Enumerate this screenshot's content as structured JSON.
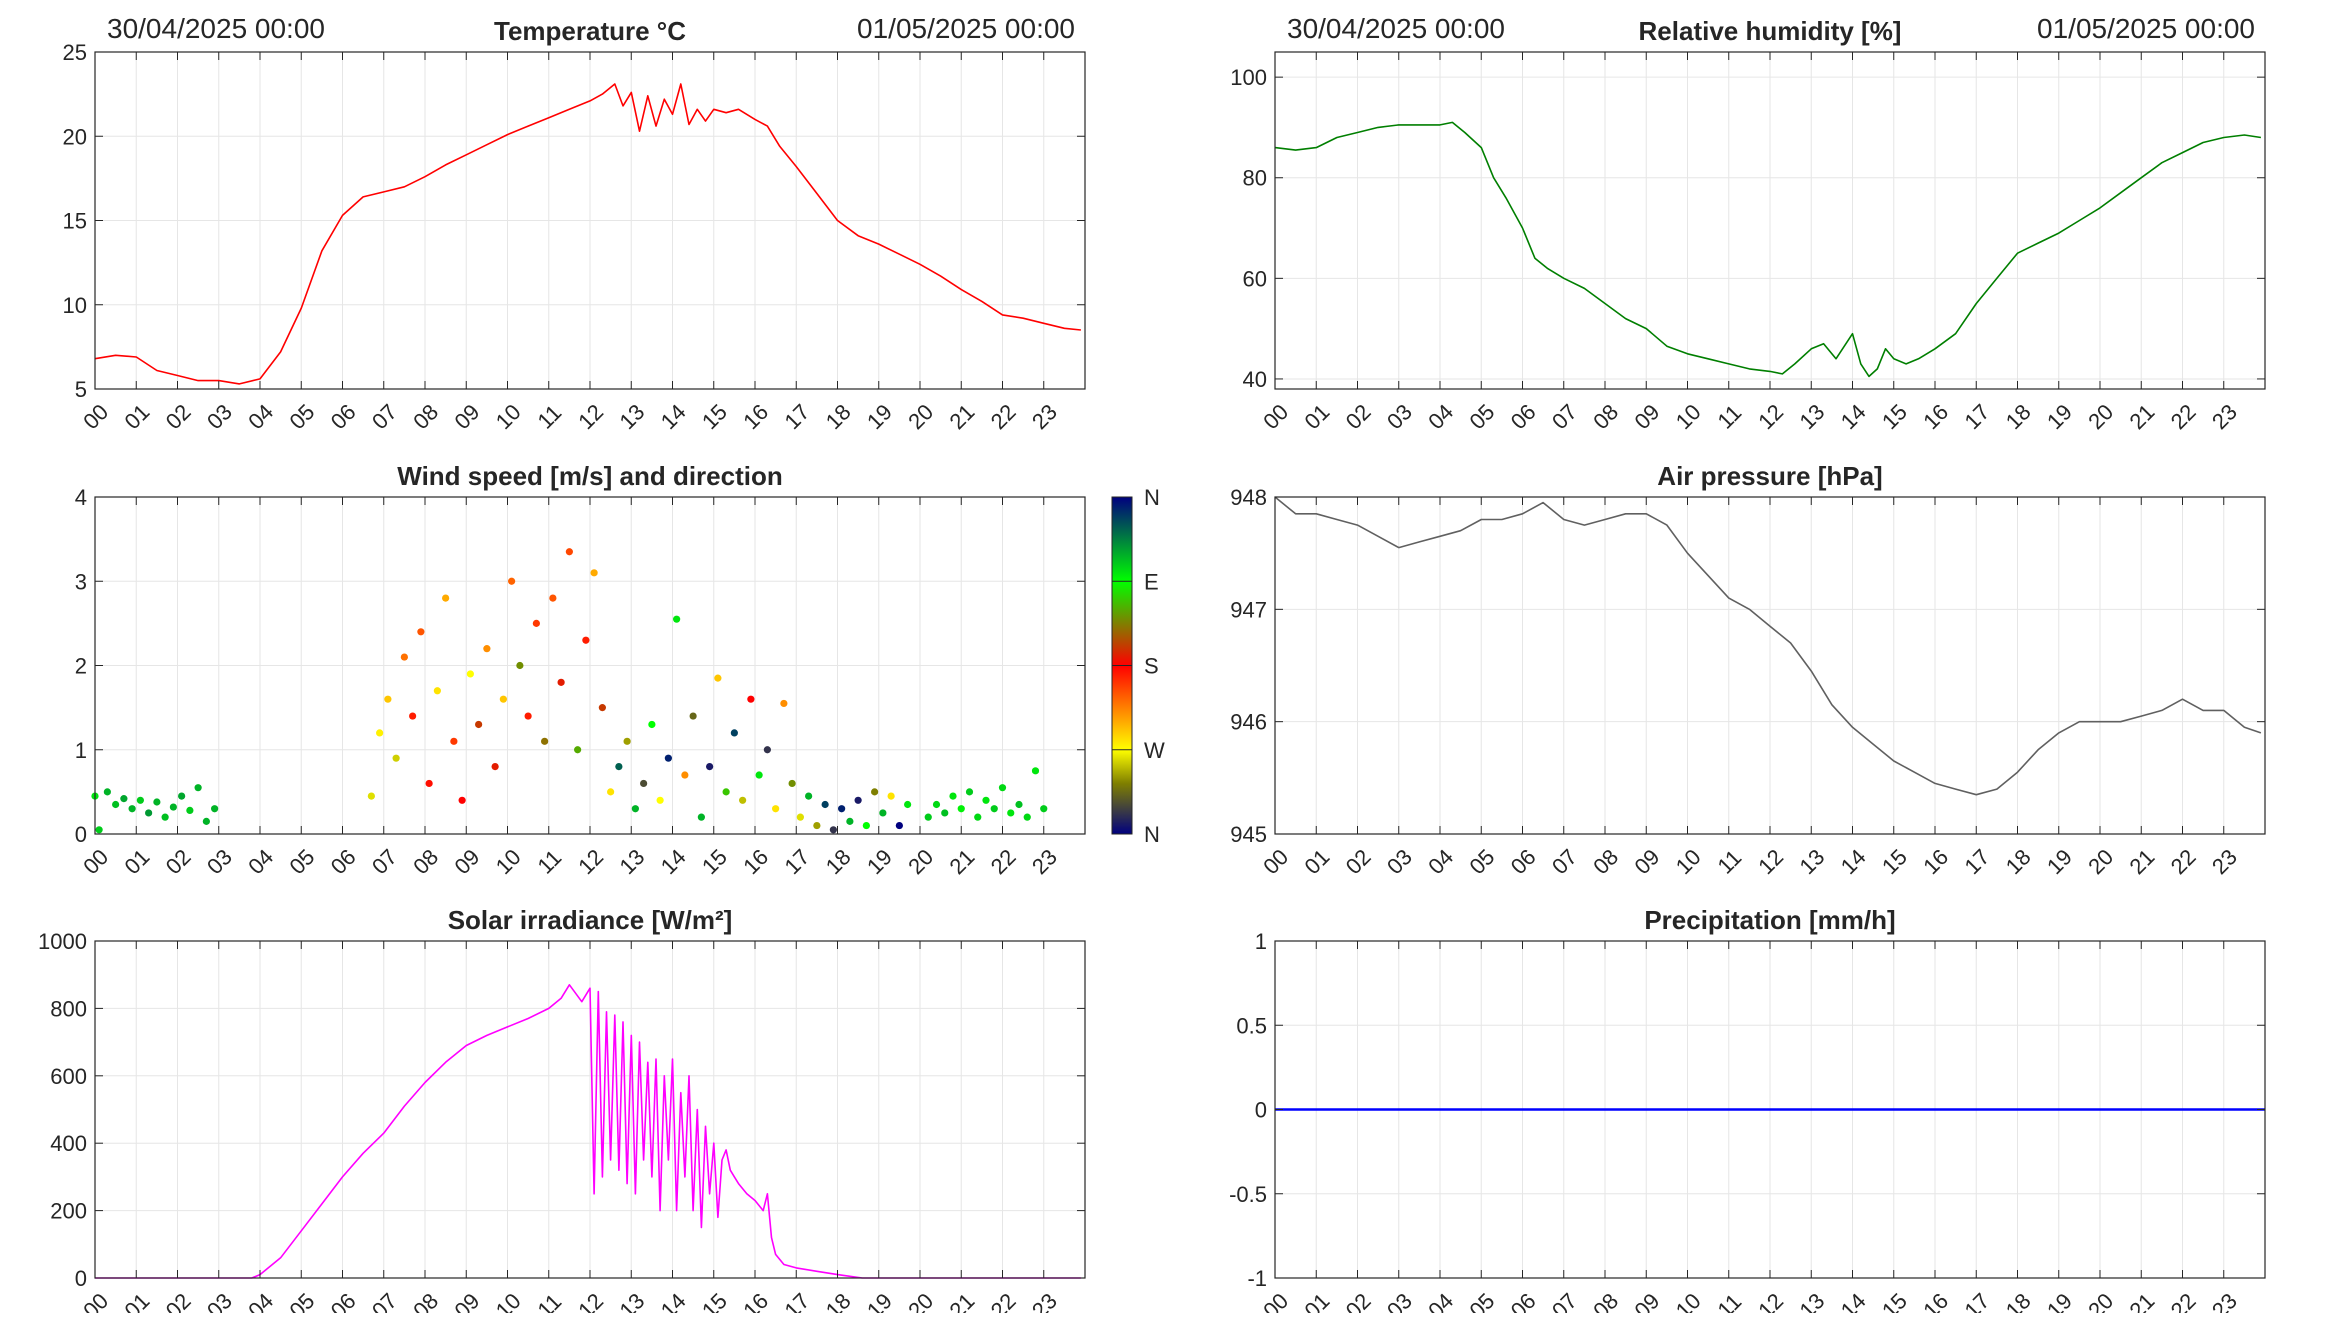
{
  "colors": {
    "temperature": "#ff0000",
    "humidity": "#007f00",
    "pressure": "#606060",
    "solar": "#ff00ff",
    "precipitation": "#0000ff",
    "grid": "#e6e6e6",
    "axes": "#262626"
  },
  "hour_labels": [
    "00",
    "01",
    "02",
    "03",
    "04",
    "05",
    "06",
    "07",
    "08",
    "09",
    "10",
    "11",
    "12",
    "13",
    "14",
    "15",
    "16",
    "17",
    "18",
    "19",
    "20",
    "21",
    "22",
    "23"
  ],
  "chart_data": [
    {
      "id": "temperature",
      "type": "line",
      "title": "Temperature °C",
      "date_start": "30/04/2025 00:00",
      "date_end": "01/05/2025 00:00",
      "xlim": [
        0,
        24
      ],
      "ylim": [
        5,
        25
      ],
      "yticks": [
        5,
        10,
        15,
        20,
        25
      ],
      "grid": true,
      "series": [
        {
          "x": [
            0,
            0.5,
            1,
            1.5,
            2,
            2.5,
            3,
            3.5,
            4,
            4.5,
            5,
            5.5,
            6,
            6.5,
            7,
            7.5,
            8,
            8.5,
            9,
            9.5,
            10,
            10.5,
            11,
            11.5,
            12,
            12.3,
            12.6,
            12.8,
            13,
            13.2,
            13.4,
            13.6,
            13.8,
            14,
            14.2,
            14.4,
            14.6,
            14.8,
            15,
            15.3,
            15.6,
            16,
            16.3,
            16.6,
            17,
            17.5,
            18,
            18.5,
            19,
            19.5,
            20,
            20.5,
            21,
            21.5,
            22,
            22.5,
            23,
            23.5,
            23.9
          ],
          "y": [
            6.8,
            7,
            6.9,
            6.1,
            5.8,
            5.5,
            5.5,
            5.3,
            5.6,
            7.2,
            9.8,
            13.2,
            15.3,
            16.4,
            16.7,
            17,
            17.6,
            18.3,
            18.9,
            19.5,
            20.1,
            20.6,
            21.1,
            21.6,
            22.1,
            22.5,
            23.1,
            21.8,
            22.6,
            20.3,
            22.4,
            20.6,
            22.2,
            21.3,
            23.1,
            20.7,
            21.6,
            20.9,
            21.6,
            21.4,
            21.6,
            21,
            20.6,
            19.4,
            18.2,
            16.6,
            15,
            14.1,
            13.6,
            13,
            12.4,
            11.7,
            10.9,
            10.2,
            9.4,
            9.2,
            8.9,
            8.6,
            8.5
          ]
        }
      ]
    },
    {
      "id": "humidity",
      "type": "line",
      "title": "Relative humidity [%]",
      "date_start": "30/04/2025 00:00",
      "date_end": "01/05/2025 00:00",
      "xlim": [
        0,
        24
      ],
      "ylim": [
        38,
        105
      ],
      "yticks": [
        40,
        60,
        80,
        100
      ],
      "grid": true,
      "series": [
        {
          "x": [
            0,
            0.5,
            1,
            1.5,
            2,
            2.5,
            3,
            3.5,
            4,
            4.3,
            4.6,
            5,
            5.3,
            5.6,
            6,
            6.3,
            6.6,
            7,
            7.5,
            8,
            8.5,
            9,
            9.5,
            10,
            10.5,
            11,
            11.5,
            12,
            12.3,
            12.6,
            13,
            13.3,
            13.6,
            14,
            14.2,
            14.4,
            14.6,
            14.8,
            15,
            15.3,
            15.6,
            16,
            16.5,
            17,
            17.5,
            18,
            18.5,
            19,
            19.5,
            20,
            20.5,
            21,
            21.5,
            22,
            22.5,
            23,
            23.5,
            23.9
          ],
          "y": [
            86,
            85.5,
            86,
            88,
            89,
            90,
            90.5,
            90.5,
            90.5,
            91,
            89,
            86,
            80,
            76,
            70,
            64,
            62,
            60,
            58,
            55,
            52,
            50,
            46.5,
            45,
            44,
            43,
            42,
            41.5,
            41,
            43,
            46,
            47,
            44,
            49,
            43,
            40.5,
            42,
            46,
            44,
            43,
            44,
            46,
            49,
            55,
            60,
            65,
            67,
            69,
            71.5,
            74,
            77,
            80,
            83,
            85,
            87,
            88,
            88.5,
            88
          ]
        }
      ]
    },
    {
      "id": "wind",
      "type": "scatter",
      "title": "Wind speed [m/s] and direction",
      "xlim": [
        0,
        24
      ],
      "ylim": [
        0,
        4
      ],
      "yticks": [
        0,
        1,
        2,
        3,
        4
      ],
      "grid": true,
      "colorbar_labels": [
        "N",
        "W",
        "S",
        "E",
        "N"
      ],
      "points_hsec": [
        {
          "h": 0,
          "s": 0.45,
          "d": 280
        },
        {
          "h": 0.1,
          "s": 0.05,
          "d": 290
        },
        {
          "h": 0.3,
          "s": 0.5,
          "d": 300
        },
        {
          "h": 0.5,
          "s": 0.35,
          "d": 295
        },
        {
          "h": 0.7,
          "s": 0.42,
          "d": 305
        },
        {
          "h": 0.9,
          "s": 0.3,
          "d": 300
        },
        {
          "h": 1.1,
          "s": 0.4,
          "d": 290
        },
        {
          "h": 1.3,
          "s": 0.25,
          "d": 310
        },
        {
          "h": 1.5,
          "s": 0.38,
          "d": 300
        },
        {
          "h": 1.7,
          "s": 0.2,
          "d": 295
        },
        {
          "h": 1.9,
          "s": 0.32,
          "d": 300
        },
        {
          "h": 2.1,
          "s": 0.45,
          "d": 305
        },
        {
          "h": 2.3,
          "s": 0.28,
          "d": 290
        },
        {
          "h": 2.5,
          "s": 0.55,
          "d": 300
        },
        {
          "h": 2.7,
          "s": 0.15,
          "d": 300
        },
        {
          "h": 2.9,
          "s": 0.3,
          "d": 300
        },
        {
          "h": 6.7,
          "s": 0.45,
          "d": 80
        },
        {
          "h": 6.9,
          "s": 1.2,
          "d": 95
        },
        {
          "h": 7.1,
          "s": 1.6,
          "d": 110
        },
        {
          "h": 7.3,
          "s": 0.9,
          "d": 75
        },
        {
          "h": 7.5,
          "s": 2.1,
          "d": 140
        },
        {
          "h": 7.7,
          "s": 1.4,
          "d": 170
        },
        {
          "h": 7.9,
          "s": 2.4,
          "d": 150
        },
        {
          "h": 8.1,
          "s": 0.6,
          "d": 175
        },
        {
          "h": 8.3,
          "s": 1.7,
          "d": 100
        },
        {
          "h": 8.5,
          "s": 2.8,
          "d": 120
        },
        {
          "h": 8.7,
          "s": 1.1,
          "d": 160
        },
        {
          "h": 8.9,
          "s": 0.4,
          "d": 180
        },
        {
          "h": 9.1,
          "s": 1.9,
          "d": 90
        },
        {
          "h": 9.3,
          "s": 1.3,
          "d": 200
        },
        {
          "h": 9.5,
          "s": 2.2,
          "d": 130
        },
        {
          "h": 9.7,
          "s": 0.8,
          "d": 190
        },
        {
          "h": 9.9,
          "s": 1.6,
          "d": 110
        },
        {
          "h": 10.1,
          "s": 3.0,
          "d": 145
        },
        {
          "h": 10.3,
          "s": 2.0,
          "d": 230
        },
        {
          "h": 10.5,
          "s": 1.4,
          "d": 170
        },
        {
          "h": 10.7,
          "s": 2.5,
          "d": 160
        },
        {
          "h": 10.9,
          "s": 1.1,
          "d": 220
        },
        {
          "h": 11.1,
          "s": 2.8,
          "d": 150
        },
        {
          "h": 11.3,
          "s": 1.8,
          "d": 190
        },
        {
          "h": 11.5,
          "s": 3.35,
          "d": 155
        },
        {
          "h": 11.7,
          "s": 1.0,
          "d": 240
        },
        {
          "h": 11.9,
          "s": 2.3,
          "d": 170
        },
        {
          "h": 12.1,
          "s": 3.1,
          "d": 120
        },
        {
          "h": 12.3,
          "s": 1.5,
          "d": 200
        },
        {
          "h": 12.5,
          "s": 0.5,
          "d": 100
        },
        {
          "h": 12.7,
          "s": 0.8,
          "d": 330
        },
        {
          "h": 12.9,
          "s": 1.1,
          "d": 60
        },
        {
          "h": 13.1,
          "s": 0.3,
          "d": 300
        },
        {
          "h": 13.3,
          "s": 0.6,
          "d": 30
        },
        {
          "h": 13.5,
          "s": 1.3,
          "d": 270
        },
        {
          "h": 13.7,
          "s": 0.4,
          "d": 90
        },
        {
          "h": 13.9,
          "s": 0.9,
          "d": 350
        },
        {
          "h": 14.1,
          "s": 2.55,
          "d": 280
        },
        {
          "h": 14.3,
          "s": 0.7,
          "d": 130
        },
        {
          "h": 14.5,
          "s": 1.4,
          "d": 40
        },
        {
          "h": 14.7,
          "s": 0.2,
          "d": 300
        },
        {
          "h": 14.9,
          "s": 0.8,
          "d": 10
        },
        {
          "h": 15.1,
          "s": 1.85,
          "d": 110
        },
        {
          "h": 15.3,
          "s": 0.5,
          "d": 250
        },
        {
          "h": 15.5,
          "s": 1.2,
          "d": 340
        },
        {
          "h": 15.7,
          "s": 0.4,
          "d": 70
        },
        {
          "h": 15.9,
          "s": 1.6,
          "d": 180
        },
        {
          "h": 16.1,
          "s": 0.7,
          "d": 280
        },
        {
          "h": 16.3,
          "s": 1.0,
          "d": 20
        },
        {
          "h": 16.5,
          "s": 0.3,
          "d": 100
        },
        {
          "h": 16.7,
          "s": 1.55,
          "d": 130
        },
        {
          "h": 16.9,
          "s": 0.6,
          "d": 230
        },
        {
          "h": 17.1,
          "s": 0.2,
          "d": 80
        },
        {
          "h": 17.3,
          "s": 0.45,
          "d": 300
        },
        {
          "h": 17.5,
          "s": 0.1,
          "d": 60
        },
        {
          "h": 17.7,
          "s": 0.35,
          "d": 340
        },
        {
          "h": 17.9,
          "s": 0.05,
          "d": 20
        },
        {
          "h": 18.1,
          "s": 0.3,
          "d": 350
        },
        {
          "h": 18.3,
          "s": 0.15,
          "d": 300
        },
        {
          "h": 18.5,
          "s": 0.4,
          "d": 10
        },
        {
          "h": 18.7,
          "s": 0.1,
          "d": 270
        },
        {
          "h": 18.9,
          "s": 0.5,
          "d": 50
        },
        {
          "h": 19.1,
          "s": 0.25,
          "d": 300
        },
        {
          "h": 19.3,
          "s": 0.45,
          "d": 100
        },
        {
          "h": 19.5,
          "s": 0.1,
          "d": 0
        },
        {
          "h": 19.7,
          "s": 0.35,
          "d": 280
        },
        {
          "h": 20.2,
          "s": 0.2,
          "d": 290
        },
        {
          "h": 20.4,
          "s": 0.35,
          "d": 285
        },
        {
          "h": 20.6,
          "s": 0.25,
          "d": 295
        },
        {
          "h": 20.8,
          "s": 0.45,
          "d": 280
        },
        {
          "h": 21.0,
          "s": 0.3,
          "d": 275
        },
        {
          "h": 21.2,
          "s": 0.5,
          "d": 290
        },
        {
          "h": 21.4,
          "s": 0.2,
          "d": 285
        },
        {
          "h": 21.6,
          "s": 0.4,
          "d": 280
        },
        {
          "h": 21.8,
          "s": 0.3,
          "d": 290
        },
        {
          "h": 22.0,
          "s": 0.55,
          "d": 285
        },
        {
          "h": 22.2,
          "s": 0.25,
          "d": 280
        },
        {
          "h": 22.4,
          "s": 0.35,
          "d": 295
        },
        {
          "h": 22.6,
          "s": 0.2,
          "d": 285
        },
        {
          "h": 22.8,
          "s": 0.75,
          "d": 280
        },
        {
          "h": 23.0,
          "s": 0.3,
          "d": 290
        }
      ]
    },
    {
      "id": "pressure",
      "type": "line",
      "title": "Air pressure [hPa]",
      "xlim": [
        0,
        24
      ],
      "ylim": [
        945,
        948
      ],
      "yticks": [
        945,
        946,
        947,
        948
      ],
      "grid": true,
      "series": [
        {
          "x": [
            0,
            0.5,
            1,
            1.5,
            2,
            2.5,
            3,
            3.5,
            4,
            4.5,
            5,
            5.5,
            6,
            6.5,
            7,
            7.5,
            8,
            8.5,
            9,
            9.5,
            10,
            10.5,
            11,
            11.5,
            12,
            12.5,
            13,
            13.5,
            14,
            14.5,
            15,
            15.5,
            16,
            16.5,
            17,
            17.5,
            18,
            18.5,
            19,
            19.5,
            20,
            20.5,
            21,
            21.5,
            22,
            22.5,
            23,
            23.5,
            23.9
          ],
          "y": [
            948,
            947.85,
            947.85,
            947.8,
            947.75,
            947.65,
            947.55,
            947.6,
            947.65,
            947.7,
            947.8,
            947.8,
            947.85,
            947.95,
            947.8,
            947.75,
            947.8,
            947.85,
            947.85,
            947.75,
            947.5,
            947.3,
            947.1,
            947,
            946.85,
            946.7,
            946.45,
            946.15,
            945.95,
            945.8,
            945.65,
            945.55,
            945.45,
            945.4,
            945.35,
            945.4,
            945.55,
            945.75,
            945.9,
            946,
            946,
            946,
            946.05,
            946.1,
            946.2,
            946.1,
            946.1,
            945.95,
            945.9
          ]
        }
      ]
    },
    {
      "id": "solar",
      "type": "line",
      "title": "Solar irradiance [W/m²]",
      "xlim": [
        0,
        24
      ],
      "ylim": [
        0,
        1000
      ],
      "yticks": [
        0,
        200,
        400,
        600,
        800,
        1000
      ],
      "grid": true,
      "series": [
        {
          "x": [
            0,
            1,
            2,
            3,
            3.8,
            4,
            4.5,
            5,
            5.5,
            6,
            6.5,
            7,
            7.5,
            8,
            8.5,
            9,
            9.5,
            10,
            10.5,
            11,
            11.3,
            11.5,
            11.8,
            12,
            12.1,
            12.2,
            12.3,
            12.4,
            12.5,
            12.6,
            12.7,
            12.8,
            12.9,
            13,
            13.1,
            13.2,
            13.3,
            13.4,
            13.5,
            13.6,
            13.7,
            13.8,
            13.9,
            14,
            14.1,
            14.2,
            14.3,
            14.4,
            14.5,
            14.6,
            14.7,
            14.8,
            14.9,
            15,
            15.1,
            15.2,
            15.3,
            15.4,
            15.5,
            15.6,
            15.8,
            16,
            16.2,
            16.3,
            16.4,
            16.5,
            16.7,
            17,
            17.5,
            18,
            18.3,
            18.6,
            19,
            20,
            21,
            22,
            23,
            23.9
          ],
          "y": [
            0,
            0,
            0,
            0,
            0,
            10,
            60,
            140,
            220,
            300,
            370,
            430,
            510,
            580,
            640,
            690,
            720,
            745,
            770,
            800,
            830,
            870,
            820,
            860,
            250,
            850,
            300,
            790,
            350,
            780,
            320,
            760,
            280,
            720,
            250,
            700,
            350,
            640,
            300,
            650,
            200,
            600,
            350,
            650,
            200,
            550,
            300,
            600,
            200,
            500,
            150,
            450,
            250,
            400,
            180,
            350,
            380,
            320,
            300,
            280,
            250,
            230,
            200,
            250,
            120,
            70,
            40,
            30,
            20,
            10,
            5,
            0,
            0,
            0,
            0,
            0,
            0,
            0
          ]
        }
      ]
    },
    {
      "id": "precipitation",
      "type": "line",
      "title": "Precipitation [mm/h]",
      "xlim": [
        0,
        24
      ],
      "ylim": [
        -1,
        1
      ],
      "yticks": [
        -1,
        -0.5,
        0,
        0.5,
        1
      ],
      "grid": true,
      "series": [
        {
          "x": [
            0,
            24
          ],
          "y": [
            0,
            0
          ]
        }
      ]
    }
  ]
}
